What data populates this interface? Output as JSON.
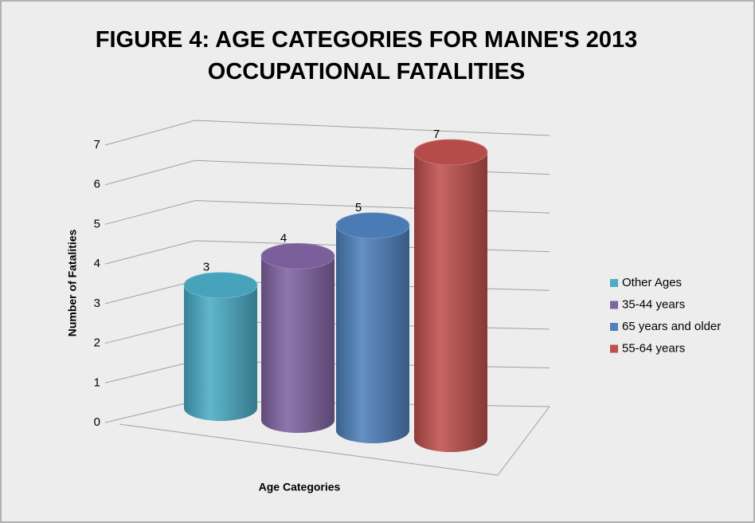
{
  "chart_data": {
    "type": "bar",
    "title": "FIGURE 4: AGE CATEGORIES FOR MAINE'S 2013 OCCUPATIONAL FATALITIES",
    "xlabel": "Age Categories",
    "ylabel": "Number of Fatalities",
    "series": [
      {
        "name": "Other Ages",
        "color": "#4bacc6",
        "values": [
          3
        ]
      },
      {
        "name": "35-44 years",
        "color": "#8064a2",
        "values": [
          4
        ]
      },
      {
        "name": "65 years and older",
        "color": "#4f81bd",
        "values": [
          5
        ]
      },
      {
        "name": "55-64 years",
        "color": "#c0504d",
        "values": [
          7
        ]
      }
    ],
    "ylim": [
      0,
      7
    ],
    "yticks": [
      0,
      1,
      2,
      3,
      4,
      5,
      6,
      7
    ],
    "grid": true,
    "legend": "right"
  }
}
